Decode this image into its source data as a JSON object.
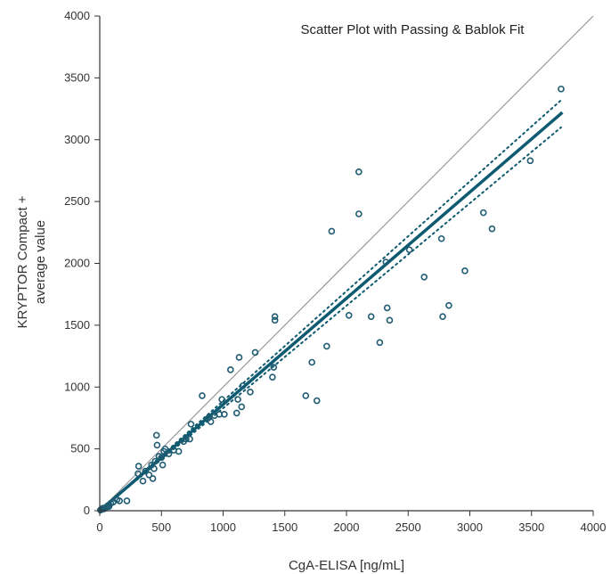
{
  "chart_data": {
    "type": "scatter",
    "title": "Scatter Plot with Passing & Bablok Fit",
    "xlabel": "CgA-ELISA [ng/mL]",
    "ylabel_lines": [
      "KRYPTOR Compact +",
      "average value"
    ],
    "xlim": [
      0,
      4000
    ],
    "ylim": [
      0,
      4000
    ],
    "xticks": [
      0,
      500,
      1000,
      1500,
      2000,
      2500,
      3000,
      3500,
      4000
    ],
    "yticks": [
      0,
      500,
      1000,
      1500,
      2000,
      2500,
      3000,
      3500,
      4000
    ],
    "grid": false,
    "colors": {
      "points": "#1f5c73",
      "fit": "#0e5a70",
      "ci": "#0e5a70",
      "identity": "#888888",
      "axis": "#333333"
    },
    "identity_line": {
      "x": [
        0,
        4000
      ],
      "y": [
        0,
        4000
      ]
    },
    "fit_line": {
      "x": [
        0,
        3750
      ],
      "y": [
        0,
        3220
      ]
    },
    "ci_upper": {
      "x": [
        0,
        3740
      ],
      "y": [
        0,
        3320
      ]
    },
    "ci_lower": {
      "x": [
        0,
        3740
      ],
      "y": [
        0,
        3100
      ]
    },
    "points": [
      [
        5,
        5
      ],
      [
        15,
        10
      ],
      [
        25,
        20
      ],
      [
        35,
        15
      ],
      [
        45,
        25
      ],
      [
        55,
        30
      ],
      [
        65,
        40
      ],
      [
        75,
        35
      ],
      [
        90,
        60
      ],
      [
        110,
        70
      ],
      [
        140,
        90
      ],
      [
        160,
        80
      ],
      [
        220,
        80
      ],
      [
        310,
        300
      ],
      [
        315,
        360
      ],
      [
        350,
        240
      ],
      [
        370,
        320
      ],
      [
        400,
        290
      ],
      [
        420,
        370
      ],
      [
        430,
        260
      ],
      [
        440,
        340
      ],
      [
        450,
        400
      ],
      [
        460,
        610
      ],
      [
        465,
        530
      ],
      [
        480,
        440
      ],
      [
        500,
        430
      ],
      [
        510,
        370
      ],
      [
        520,
        480
      ],
      [
        530,
        500
      ],
      [
        560,
        460
      ],
      [
        600,
        490
      ],
      [
        640,
        480
      ],
      [
        680,
        560
      ],
      [
        700,
        580
      ],
      [
        730,
        580
      ],
      [
        740,
        700
      ],
      [
        830,
        930
      ],
      [
        880,
        750
      ],
      [
        900,
        720
      ],
      [
        930,
        770
      ],
      [
        970,
        780
      ],
      [
        990,
        900
      ],
      [
        1010,
        780
      ],
      [
        1060,
        1140
      ],
      [
        1110,
        790
      ],
      [
        1120,
        900
      ],
      [
        1130,
        1240
      ],
      [
        1150,
        840
      ],
      [
        1160,
        1010
      ],
      [
        1220,
        960
      ],
      [
        1260,
        1280
      ],
      [
        1400,
        1080
      ],
      [
        1410,
        1160
      ],
      [
        1420,
        1570
      ],
      [
        1420,
        1540
      ],
      [
        1670,
        930
      ],
      [
        1720,
        1200
      ],
      [
        1760,
        890
      ],
      [
        1840,
        1330
      ],
      [
        1880,
        2260
      ],
      [
        2020,
        1580
      ],
      [
        2100,
        2740
      ],
      [
        2100,
        2400
      ],
      [
        2200,
        1570
      ],
      [
        2270,
        1360
      ],
      [
        2320,
        2010
      ],
      [
        2330,
        1640
      ],
      [
        2350,
        1540
      ],
      [
        2510,
        2110
      ],
      [
        2630,
        1890
      ],
      [
        2770,
        2200
      ],
      [
        2780,
        1570
      ],
      [
        2830,
        1660
      ],
      [
        2960,
        1940
      ],
      [
        3110,
        2410
      ],
      [
        3180,
        2280
      ],
      [
        3490,
        2830
      ],
      [
        3740,
        3410
      ]
    ]
  }
}
